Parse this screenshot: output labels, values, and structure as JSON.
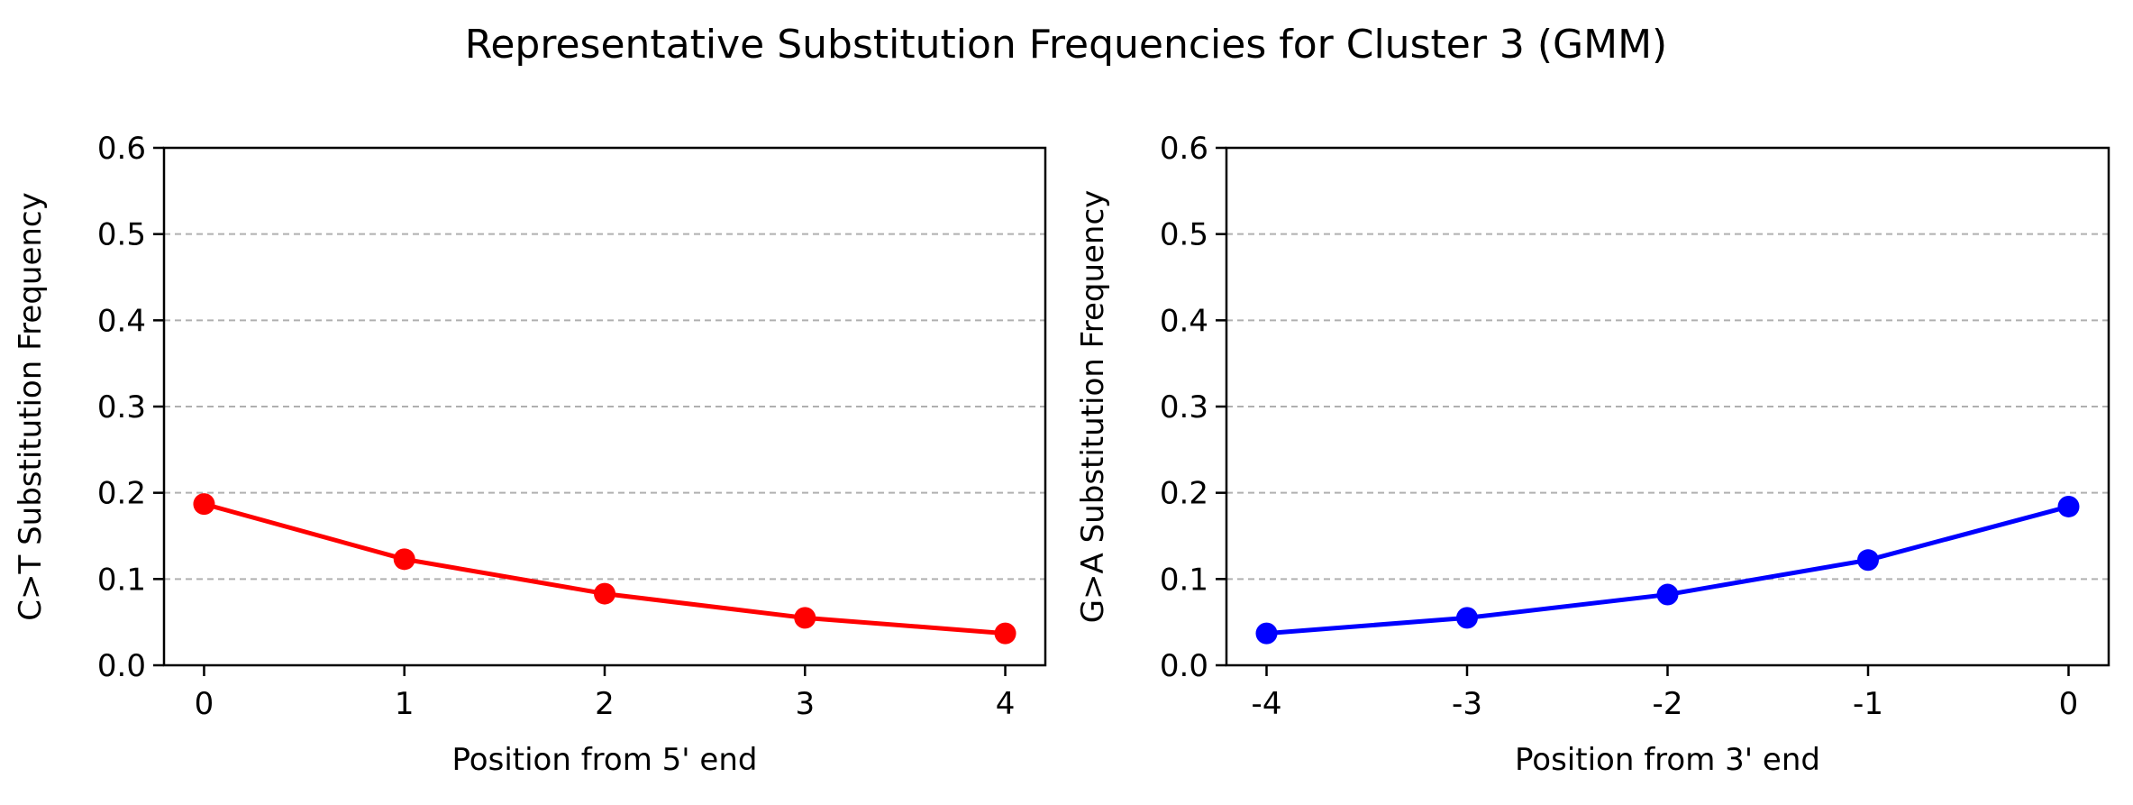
{
  "figure": {
    "suptitle": "Representative Substitution Frequencies for Cluster 3 (GMM)"
  },
  "chart_data": [
    {
      "type": "line",
      "x": [
        0,
        1,
        2,
        3,
        4
      ],
      "x_tick_labels": [
        "0",
        "1",
        "2",
        "3",
        "4"
      ],
      "xlim": [
        -0.2,
        4.2
      ],
      "ylim": [
        0.0,
        0.6
      ],
      "y_ticks": [
        0.0,
        0.1,
        0.2,
        0.3,
        0.4,
        0.5,
        0.6
      ],
      "y_tick_labels": [
        "0.0",
        "0.1",
        "0.2",
        "0.3",
        "0.4",
        "0.5",
        "0.6"
      ],
      "series": [
        {
          "values": [
            0.187,
            0.123,
            0.083,
            0.055,
            0.037
          ],
          "color": "#ff0000",
          "marker": "circle"
        }
      ],
      "xlabel": "Position from 5' end",
      "ylabel": "C>T Substitution Frequency",
      "grid": "horizontal dashed",
      "legend": "none"
    },
    {
      "type": "line",
      "x": [
        -4,
        -3,
        -2,
        -1,
        0
      ],
      "x_tick_labels": [
        "-4",
        "-3",
        "-2",
        "-1",
        "0"
      ],
      "xlim": [
        -4.2,
        0.2
      ],
      "ylim": [
        0.0,
        0.6
      ],
      "y_ticks": [
        0.0,
        0.1,
        0.2,
        0.3,
        0.4,
        0.5,
        0.6
      ],
      "y_tick_labels": [
        "0.0",
        "0.1",
        "0.2",
        "0.3",
        "0.4",
        "0.5",
        "0.6"
      ],
      "series": [
        {
          "values": [
            0.037,
            0.055,
            0.082,
            0.122,
            0.184
          ],
          "color": "#0000ff",
          "marker": "circle"
        }
      ],
      "xlabel": "Position from 3' end",
      "ylabel": "G>A Substitution Frequency",
      "grid": "horizontal dashed",
      "legend": "none"
    }
  ]
}
